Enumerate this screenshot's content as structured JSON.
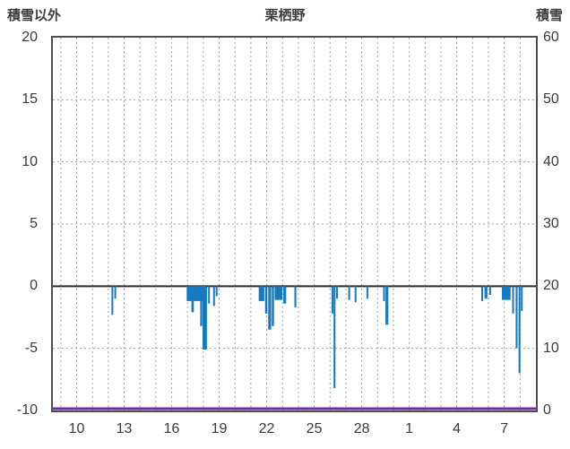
{
  "chart_data": {
    "type": "bar",
    "title": "栗栖野",
    "left_axis": {
      "label": "積雪以外",
      "min": -10,
      "max": 20,
      "ticks": [
        20,
        15,
        10,
        5,
        0,
        -5,
        -10
      ]
    },
    "right_axis": {
      "label": "積雪",
      "min": 0,
      "max": 60,
      "ticks": [
        60,
        50,
        40,
        30,
        20,
        10,
        0
      ]
    },
    "x_axis": {
      "domain": [
        8.5,
        39
      ],
      "tick_days": [
        10,
        13,
        16,
        19,
        22,
        25,
        28,
        31,
        34,
        37
      ],
      "tick_labels": [
        "10",
        "13",
        "16",
        "19",
        "22",
        "25",
        "28",
        "1",
        "4",
        "7"
      ],
      "day_gridlines": true
    },
    "grid": {
      "on": true,
      "color": "#9aa3ab",
      "dash": "2,3"
    },
    "zero_line_color": "#2b2b2b",
    "frame_color": "#4e4e4e",
    "series": [
      {
        "name": "積雪以外",
        "type": "bar",
        "color": "#1779be",
        "bars": [
          {
            "d": 12.2,
            "w": 0.08,
            "v": -2.3
          },
          {
            "d": 12.38,
            "w": 0.07,
            "v": -1.0
          },
          {
            "d": 16.95,
            "w": 1.15,
            "v": -1.2
          },
          {
            "d": 17.25,
            "w": 0.15,
            "v": -2.1
          },
          {
            "d": 17.8,
            "w": 0.13,
            "v": -3.2
          },
          {
            "d": 17.95,
            "w": 0.28,
            "v": -5.1
          },
          {
            "d": 18.3,
            "w": 0.08,
            "v": -1.4
          },
          {
            "d": 18.62,
            "w": 0.1,
            "v": -1.6
          },
          {
            "d": 18.78,
            "w": 0.08,
            "v": -0.8
          },
          {
            "d": 21.5,
            "w": 0.35,
            "v": -1.2
          },
          {
            "d": 21.9,
            "w": 0.14,
            "v": -2.2
          },
          {
            "d": 22.1,
            "w": 0.18,
            "v": -3.5
          },
          {
            "d": 22.32,
            "w": 0.14,
            "v": -3.2
          },
          {
            "d": 22.5,
            "w": 0.5,
            "v": -1.1
          },
          {
            "d": 23.05,
            "w": 0.18,
            "v": -1.4
          },
          {
            "d": 23.75,
            "w": 0.12,
            "v": -1.7
          },
          {
            "d": 26.1,
            "w": 0.08,
            "v": -2.2
          },
          {
            "d": 26.22,
            "w": 0.12,
            "v": -8.2
          },
          {
            "d": 26.38,
            "w": 0.07,
            "v": -1.0
          },
          {
            "d": 27.15,
            "w": 0.09,
            "v": -1.1
          },
          {
            "d": 27.55,
            "w": 0.09,
            "v": -1.3
          },
          {
            "d": 28.3,
            "w": 0.09,
            "v": -1.0
          },
          {
            "d": 29.35,
            "w": 0.1,
            "v": -1.2
          },
          {
            "d": 29.5,
            "w": 0.18,
            "v": -3.1
          },
          {
            "d": 35.55,
            "w": 0.1,
            "v": -1.2
          },
          {
            "d": 35.75,
            "w": 0.18,
            "v": -1.0
          },
          {
            "d": 36.05,
            "w": 0.08,
            "v": -0.7
          },
          {
            "d": 36.85,
            "w": 0.55,
            "v": -1.1
          },
          {
            "d": 37.5,
            "w": 0.1,
            "v": -2.2
          },
          {
            "d": 37.72,
            "w": 0.12,
            "v": -5.0
          },
          {
            "d": 37.9,
            "w": 0.12,
            "v": -7.0
          },
          {
            "d": 38.05,
            "w": 0.08,
            "v": -2.0
          }
        ]
      },
      {
        "name": "積雪",
        "type": "line",
        "color": "#6a2f9b",
        "value_cm": 0
      }
    ]
  }
}
